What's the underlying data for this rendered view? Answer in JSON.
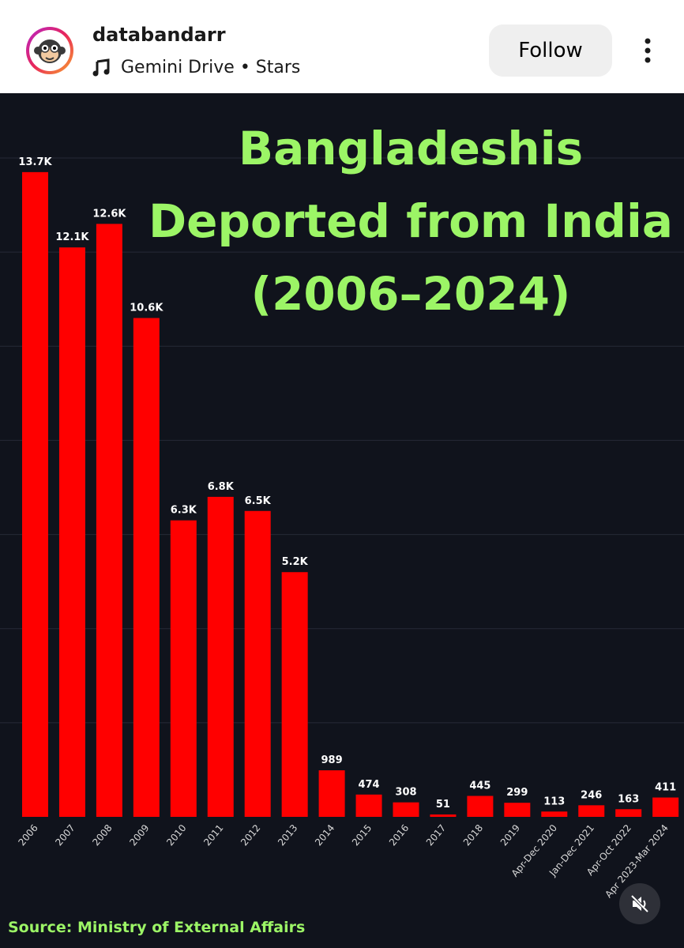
{
  "header": {
    "username": "databandarr",
    "song": "Gemini Drive • Stars",
    "follow_label": "Follow",
    "icons": {
      "avatar": "monkey-avatar",
      "music": "music-note-icon",
      "more": "more-vertical-icon"
    }
  },
  "chart_data": {
    "type": "bar",
    "title_lines": [
      "Bangladeshis",
      "Deported from India",
      "(2006–2024)"
    ],
    "categories": [
      "2006",
      "2007",
      "2008",
      "2009",
      "2010",
      "2011",
      "2012",
      "2013",
      "2014",
      "2015",
      "2016",
      "2017",
      "2018",
      "2019",
      "Apr-Dec 2020",
      "Jan-Dec 2021",
      "Apr-Oct 2022",
      "Apr 2023-Mar 2024"
    ],
    "values": [
      13700,
      12100,
      12600,
      10600,
      6300,
      6800,
      6500,
      5200,
      989,
      474,
      308,
      51,
      445,
      299,
      113,
      246,
      163,
      411
    ],
    "data_labels": [
      "13.7K",
      "12.1K",
      "12.6K",
      "10.6K",
      "6.3K",
      "6.8K",
      "6.5K",
      "5.2K",
      "989",
      "474",
      "308",
      "51",
      "445",
      "299",
      "113",
      "246",
      "163",
      "411"
    ],
    "ylim": [
      0,
      14000
    ],
    "grid": true,
    "colors": {
      "bar": "#ff0000",
      "background": "#10131c",
      "title": "#9cf566",
      "label": "#ffffff",
      "grid": "#262a36"
    },
    "source": "Source: Ministry of External Affairs"
  },
  "video": {
    "mute_icon": "speaker-muted-icon"
  }
}
